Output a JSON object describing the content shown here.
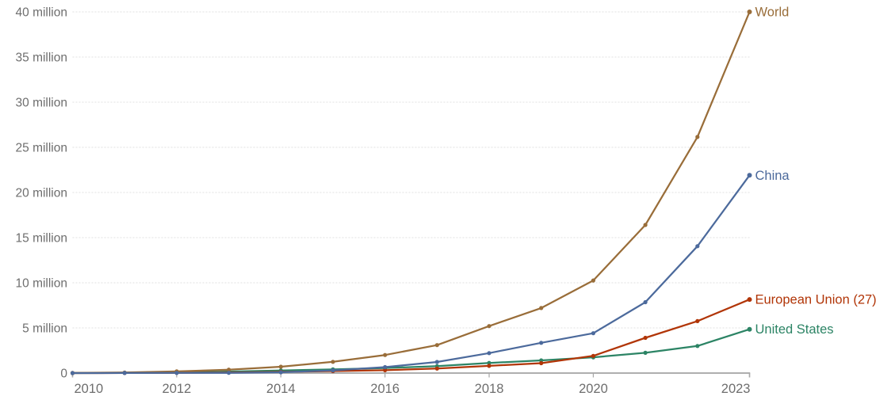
{
  "chart_data": {
    "type": "line",
    "title": "",
    "xlabel": "",
    "ylabel": "",
    "unit": "million",
    "grid": "horizontal-dotted",
    "legend_position": "end-of-line-labels-right",
    "xlim": [
      2010,
      2023
    ],
    "ylim": [
      0,
      40
    ],
    "x": [
      2010,
      2011,
      2012,
      2013,
      2014,
      2015,
      2016,
      2017,
      2018,
      2019,
      2020,
      2021,
      2022,
      2023
    ],
    "xticks": [
      {
        "v": 2010,
        "label": "2010"
      },
      {
        "v": 2012,
        "label": "2012"
      },
      {
        "v": 2014,
        "label": "2014"
      },
      {
        "v": 2016,
        "label": "2016"
      },
      {
        "v": 2018,
        "label": "2018"
      },
      {
        "v": 2020,
        "label": "2020"
      },
      {
        "v": 2023,
        "label": "2023"
      }
    ],
    "yticks": [
      {
        "v": 0,
        "label": "0"
      },
      {
        "v": 5,
        "label": "5 million"
      },
      {
        "v": 10,
        "label": "10 million"
      },
      {
        "v": 15,
        "label": "15 million"
      },
      {
        "v": 20,
        "label": "20 million"
      },
      {
        "v": 25,
        "label": "25 million"
      },
      {
        "v": 30,
        "label": "30 million"
      },
      {
        "v": 35,
        "label": "35 million"
      },
      {
        "v": 40,
        "label": "40 million"
      }
    ],
    "series": [
      {
        "name": "United States",
        "slug": "united-states",
        "color": "#2C8465",
        "values": [
          0.0,
          0.02,
          0.07,
          0.17,
          0.29,
          0.4,
          0.56,
          0.76,
          1.12,
          1.4,
          1.75,
          2.25,
          3.0,
          4.85
        ]
      },
      {
        "name": "European Union (27)",
        "slug": "european-union-27",
        "color": "#B13507",
        "values": [
          0.0,
          0.01,
          0.03,
          0.06,
          0.13,
          0.22,
          0.32,
          0.5,
          0.8,
          1.1,
          1.9,
          3.9,
          5.75,
          8.15
        ]
      },
      {
        "name": "World",
        "slug": "world",
        "color": "#996D39",
        "values": [
          0.02,
          0.06,
          0.18,
          0.38,
          0.7,
          1.25,
          2.0,
          3.1,
          5.2,
          7.2,
          10.25,
          16.4,
          26.15,
          40.0
        ]
      },
      {
        "name": "China",
        "slug": "china",
        "color": "#4C6A9C",
        "values": [
          0.0,
          0.01,
          0.02,
          0.03,
          0.09,
          0.3,
          0.66,
          1.23,
          2.21,
          3.35,
          4.41,
          7.85,
          14.05,
          21.9
        ]
      }
    ]
  },
  "style": {
    "axis_text_color": "#6e6e6e",
    "gridline_color": "#e0e0e0",
    "baseline_color": "#a3a3a3",
    "tick_color": "#a8a8a8",
    "background": "#ffffff"
  }
}
